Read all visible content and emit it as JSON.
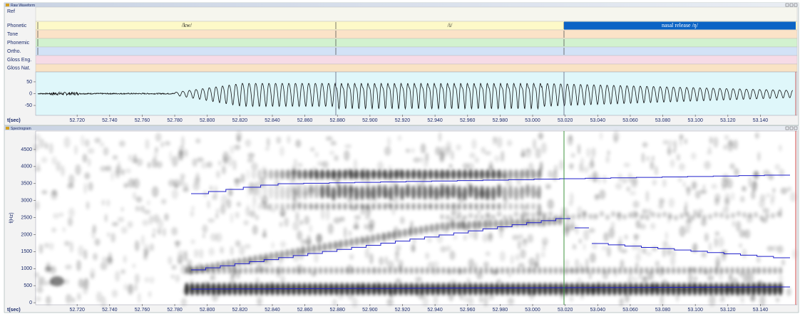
{
  "waveform": {
    "title": "Raw Waveform",
    "tiers": [
      {
        "label": "Ref"
      },
      {
        "label": "Phonetic",
        "segments": [
          "/kw/",
          "/i/",
          "nasal release /ŋ/"
        ]
      },
      {
        "label": "Tone"
      },
      {
        "label": "Phonemic"
      },
      {
        "label": "Ortho."
      },
      {
        "label": "Gloss Eng."
      },
      {
        "label": "Gloss Nat."
      }
    ],
    "ylim": [
      -92,
      92
    ],
    "yticks": [
      50,
      0,
      -50
    ],
    "x_label": "t(sec)",
    "xlim": [
      52.6945,
      53.1626
    ],
    "xticks": [
      {
        "value": 52.72,
        "label": "52.720"
      },
      {
        "value": 52.74,
        "label": "52.740"
      },
      {
        "value": 52.76,
        "label": "52.760"
      },
      {
        "value": 52.78,
        "label": "52.780"
      },
      {
        "value": 52.8,
        "label": "52.800"
      },
      {
        "value": 52.82,
        "label": "52.820"
      },
      {
        "value": 52.84,
        "label": "52.840"
      },
      {
        "value": 52.86,
        "label": "52.860"
      },
      {
        "value": 52.88,
        "label": "52.880"
      },
      {
        "value": 52.9,
        "label": "52.900"
      },
      {
        "value": 52.92,
        "label": "52.920"
      },
      {
        "value": 52.94,
        "label": "52.940"
      },
      {
        "value": 52.96,
        "label": "52.960"
      },
      {
        "value": 52.98,
        "label": "52.980"
      },
      {
        "value": 53.0,
        "label": "53.000"
      },
      {
        "value": 53.02,
        "label": "53.020"
      },
      {
        "value": 53.04,
        "label": "53.040"
      },
      {
        "value": 53.06,
        "label": "53.060"
      },
      {
        "value": 53.08,
        "label": "53.080"
      },
      {
        "value": 53.1,
        "label": "53.100"
      },
      {
        "value": 53.12,
        "label": "53.120"
      },
      {
        "value": 53.14,
        "label": "53.140"
      }
    ]
  },
  "spectrogram": {
    "title": "Spectrogram",
    "y_label": "f(Hz)",
    "ylim": [
      -60,
      5000
    ],
    "yticks": [
      0,
      500,
      1000,
      1500,
      2000,
      2500,
      3000,
      3500,
      4000,
      4500
    ],
    "x_label": "t(sec)",
    "xlim": [
      52.6945,
      53.1626
    ],
    "xticks": [
      {
        "value": 52.72,
        "label": "52.720"
      },
      {
        "value": 52.74,
        "label": "52.740"
      },
      {
        "value": 52.76,
        "label": "52.760"
      },
      {
        "value": 52.78,
        "label": "52.780"
      },
      {
        "value": 52.8,
        "label": "52.800"
      },
      {
        "value": 52.82,
        "label": "52.820"
      },
      {
        "value": 52.84,
        "label": "52.840"
      },
      {
        "value": 52.86,
        "label": "52.860"
      },
      {
        "value": 52.88,
        "label": "52.880"
      },
      {
        "value": 52.9,
        "label": "52.900"
      },
      {
        "value": 52.92,
        "label": "52.920"
      },
      {
        "value": 52.94,
        "label": "52.940"
      },
      {
        "value": 52.96,
        "label": "52.960"
      },
      {
        "value": 52.98,
        "label": "52.980"
      },
      {
        "value": 53.0,
        "label": "53.000"
      },
      {
        "value": 53.02,
        "label": "53.020"
      },
      {
        "value": 53.04,
        "label": "53.040"
      },
      {
        "value": 53.06,
        "label": "53.060"
      },
      {
        "value": 53.08,
        "label": "53.080"
      },
      {
        "value": 53.1,
        "label": "53.100"
      },
      {
        "value": 53.12,
        "label": "53.120"
      },
      {
        "value": 53.14,
        "label": "53.140"
      }
    ]
  }
}
